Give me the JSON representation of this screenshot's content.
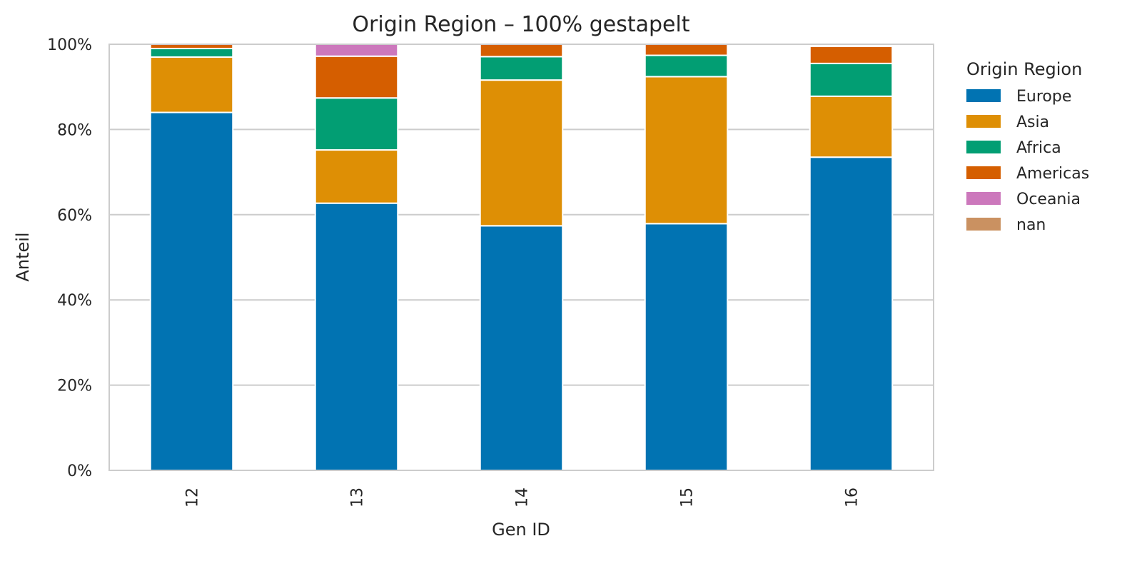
{
  "chart_data": {
    "type": "bar",
    "stacked": true,
    "normalized": true,
    "title": "Origin Region – 100% gestapelt",
    "xlabel": "Gen ID",
    "ylabel": "Anteil",
    "categories": [
      "12",
      "13",
      "14",
      "15",
      "16"
    ],
    "ylim": [
      0,
      1
    ],
    "yticks": [
      {
        "value": 0.0,
        "label": "0%"
      },
      {
        "value": 0.2,
        "label": "20%"
      },
      {
        "value": 0.4,
        "label": "40%"
      },
      {
        "value": 0.6,
        "label": "60%"
      },
      {
        "value": 0.8,
        "label": "80%"
      },
      {
        "value": 1.0,
        "label": "100%"
      }
    ],
    "grid": "horizontal",
    "legend": {
      "title": "Origin Region",
      "placement": "outside right"
    },
    "series": [
      {
        "name": "Europe",
        "color": "#0173b2",
        "values": [
          0.84,
          0.627,
          0.574,
          0.579,
          0.735
        ]
      },
      {
        "name": "Asia",
        "color": "#de8f05",
        "values": [
          0.13,
          0.125,
          0.342,
          0.345,
          0.143
        ]
      },
      {
        "name": "Africa",
        "color": "#029e73",
        "values": [
          0.02,
          0.122,
          0.055,
          0.05,
          0.077
        ]
      },
      {
        "name": "Americas",
        "color": "#d55e00",
        "values": [
          0.01,
          0.098,
          0.029,
          0.026,
          0.04
        ]
      },
      {
        "name": "Oceania",
        "color": "#cc78bc",
        "values": [
          0.0,
          0.028,
          0.0,
          0.0,
          0.0
        ]
      },
      {
        "name": "nan",
        "color": "#ca9161",
        "values": [
          0.0,
          0.0,
          0.0,
          0.0,
          0.0
        ]
      }
    ]
  }
}
